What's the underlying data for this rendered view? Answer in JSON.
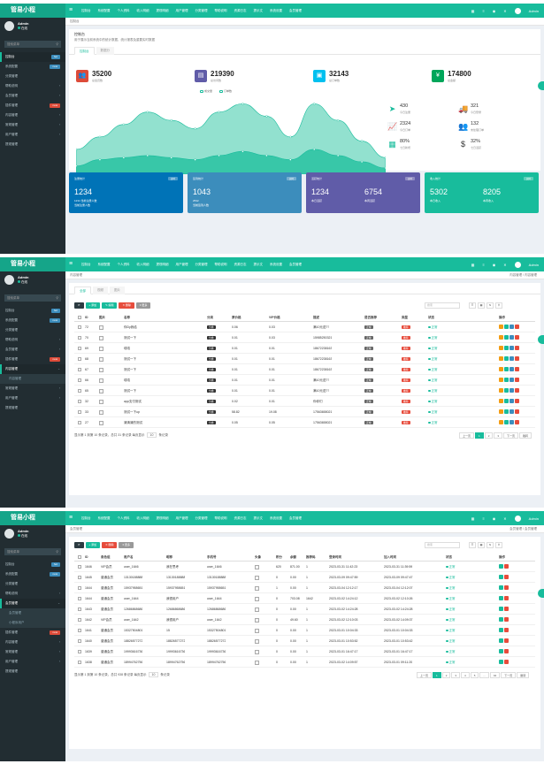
{
  "app": {
    "logo": "管易小程",
    "toggle_icon": "hamburger-icon",
    "top_nav": [
      "控制台",
      "系统配置",
      "个人资料",
      "收入明细",
      "提现明细",
      "用户管理",
      "分类管理",
      "帮助说明",
      "资源日志",
      "提示文",
      "系统设置",
      "会员管理"
    ],
    "top_right": [
      "▦",
      "≡",
      "◉",
      "✕",
      "Admin"
    ],
    "user": {
      "name": "Admin",
      "status": "在线"
    },
    "search_placeholder": "搜索菜单",
    "accent": "#18bc9c"
  },
  "panels": [
    {
      "breadcrumb": "控制台",
      "menu": [
        {
          "label": "控制台",
          "badge": "hot",
          "badge_color": "#3c8dbc",
          "active": true
        },
        {
          "label": "系统配置",
          "badge": "new",
          "badge_color": "#3c8dbc"
        },
        {
          "label": "分类管理"
        },
        {
          "label": "帮助说明",
          "arrow": "‹"
        },
        {
          "label": "会员管理",
          "arrow": "‹"
        },
        {
          "label": "插件管理",
          "badge": "new",
          "badge_color": "#dd4b39"
        },
        {
          "label": "内容管理",
          "arrow": "‹"
        },
        {
          "label": "常规管理",
          "arrow": "‹"
        },
        {
          "label": "用户管理",
          "arrow": "‹"
        },
        {
          "label": "提现管理"
        }
      ],
      "dash_title": "控制台",
      "dash_sub": "用于展示当前系统中的统计数据、统计报表及重要实时数据",
      "tabs": [
        "控制台",
        "数据分"
      ],
      "stats": [
        {
          "value": "35200",
          "label": "总会员数",
          "color": "#dd4b39",
          "icon": "users-icon",
          "glyph": "👥"
        },
        {
          "value": "219390",
          "label": "总访问数",
          "color": "#605ca8",
          "icon": "book-icon",
          "glyph": "▤"
        },
        {
          "value": "32143",
          "label": "总订单数",
          "color": "#00c0ef",
          "icon": "shopping-bag-icon",
          "glyph": "▣"
        },
        {
          "value": "174800",
          "label": "总金额",
          "color": "#00a65a",
          "icon": "yen-icon",
          "glyph": "¥"
        }
      ],
      "legend": [
        "成交量",
        "订单数"
      ],
      "chart_data": {
        "type": "area",
        "x": [
          "5/20",
          "6/20",
          "7/20",
          "8/20",
          "9/20",
          "10/20",
          "11/20",
          "12/20",
          "1/20",
          "2/20",
          "3/20",
          "4/20",
          "5/20",
          "6/20"
        ],
        "series": [
          {
            "name": "成交量",
            "values": [
              60,
              90,
              120,
              150,
              130,
              110,
              150,
              170,
              140,
              90,
              170,
              130,
              80,
              40
            ]
          },
          {
            "name": "订单数",
            "values": [
              20,
              35,
              40,
              45,
              40,
              35,
              45,
              55,
              45,
              35,
              60,
              45,
              30,
              15
            ]
          }
        ],
        "ylim": [
          0,
          190
        ]
      },
      "mini_stats": [
        {
          "value": "430",
          "label": "今日注册",
          "icon": "plane-icon",
          "glyph": "➤"
        },
        {
          "value": "321",
          "label": "今日登录",
          "icon": "truck-icon",
          "glyph": "🚚"
        },
        {
          "value": "2324",
          "label": "今日订单",
          "icon": "chart-icon",
          "glyph": "📈"
        },
        {
          "value": "132",
          "label": "未处理订单",
          "icon": "users-icon",
          "glyph": "👥"
        },
        {
          "value": "80%",
          "label": "七日新增",
          "icon": "calendar-icon",
          "glyph": "▦"
        },
        {
          "value": "32%",
          "label": "七日活跃",
          "icon": "dollar-icon",
          "glyph": "$"
        }
      ],
      "cards": [
        {
          "title": "注册统计",
          "tag": "实时",
          "color": "#0073b7",
          "v1": "1234",
          "l1": "1234 当前注册人数",
          "l2": "当前注册人数",
          "v2": ""
        },
        {
          "title": "签到统计",
          "tag": "实时",
          "color": "#3c8dbc",
          "v1": "1043",
          "l1": "2532",
          "l2": "当前签到人数",
          "v2": ""
        },
        {
          "title": "活跃统计",
          "tag": "实时",
          "color": "#605ca8",
          "v1": "1234",
          "l1": "本日活跃",
          "v2": "6754",
          "l2": "本周活跃"
        },
        {
          "title": "收入统计",
          "tag": "实时",
          "color": "#18bc9c",
          "v1": "5302",
          "l1": "本日收入",
          "v2": "8205",
          "l2": "本周收入"
        }
      ]
    },
    {
      "breadcrumb": "内容管理",
      "crumb_right": "内容管理 / 内容管理",
      "menu": [
        {
          "label": "控制台",
          "badge": "hot",
          "badge_color": "#3c8dbc"
        },
        {
          "label": "系统配置",
          "badge": "new",
          "badge_color": "#3c8dbc"
        },
        {
          "label": "分类管理"
        },
        {
          "label": "帮助说明",
          "arrow": "‹"
        },
        {
          "label": "会员管理",
          "arrow": "‹"
        },
        {
          "label": "插件管理",
          "badge": "new",
          "badge_color": "#dd4b39"
        },
        {
          "label": "内容管理",
          "arrow": "⌄",
          "active": true
        },
        {
          "label": "内容管理",
          "sub": true
        },
        {
          "label": "常规管理",
          "arrow": "‹"
        },
        {
          "label": "用户管理",
          "arrow": "‹"
        },
        {
          "label": "提现管理"
        }
      ],
      "tabs": [
        "全部",
        "视频",
        "图片"
      ],
      "toolbar": [
        {
          "label": "⟳",
          "color": "#2c3b41"
        },
        {
          "label": "+ 添加",
          "color": "#18bc9c"
        },
        {
          "label": "✎ 编辑",
          "color": "#18bc9c"
        },
        {
          "label": "✕ 删除",
          "color": "#e74c3c"
        },
        {
          "label": "≡ 更多",
          "color": "#999"
        }
      ],
      "search_placeholder": "搜索",
      "columns": [
        "ID",
        "图片",
        "名称",
        "分类",
        "原价格",
        "VIP价格",
        "描述",
        "是否推荐",
        "类型",
        "状态",
        "操作"
      ],
      "rows": [
        [
          "72",
          "",
          "你Dy我给",
          "分类",
          "0.06",
          "0.03",
          "满10元送7?",
          "正常",
          "推荐",
          "正常"
        ],
        [
          "70",
          "",
          "测试一下",
          "分类",
          "0.01",
          "0.03",
          "15985250321",
          "正常",
          "推荐",
          "正常"
        ],
        [
          "69",
          "",
          "嘻嘻",
          "分类",
          "0.01",
          "0.01",
          "18672238163",
          "正常",
          "推荐",
          "正常"
        ],
        [
          "68",
          "",
          "测试一下",
          "分类",
          "0.01",
          "0.01",
          "18672238163",
          "正常",
          "推荐",
          "正常"
        ],
        [
          "67",
          "",
          "测试一下",
          "分类",
          "0.01",
          "0.01",
          "18672238163",
          "正常",
          "推荐",
          "正常"
        ],
        [
          "66",
          "",
          "嘻嘻",
          "分类",
          "0.01",
          "0.01",
          "满10元送7?",
          "正常",
          "推荐",
          "正常"
        ],
        [
          "65",
          "",
          "测试一下",
          "分类",
          "0.01",
          "0.01",
          "满10元送7?",
          "正常",
          "推荐",
          "正常"
        ],
        [
          "32",
          "",
          "app支付测试",
          "分类",
          "0.02",
          "0.01",
          "你你们",
          "正常",
          "推荐",
          "正常"
        ],
        [
          "33",
          "",
          "测试一下up",
          "分类",
          "58.82",
          "19.08",
          "17563658021",
          "正常",
          "推荐",
          "正常"
        ],
        [
          "27",
          "",
          "清清清的测试",
          "分类",
          "0.05",
          "0.05",
          "17563658021",
          "正常",
          "推荐",
          "正常"
        ]
      ],
      "footer": "显示第 1 到第 10 条记录，总共 31 条记录 每页显示",
      "per_page": "10",
      "footer_tail": "条记录",
      "pages": [
        "上一页",
        "1",
        "2",
        "3",
        "下一页",
        "跳转"
      ]
    },
    {
      "breadcrumb": "会员管理",
      "crumb_right": "会员管理 / 会员管理",
      "menu": [
        {
          "label": "控制台",
          "badge": "hot",
          "badge_color": "#3c8dbc"
        },
        {
          "label": "系统配置",
          "badge": "new",
          "badge_color": "#3c8dbc"
        },
        {
          "label": "分类管理"
        },
        {
          "label": "帮助说明",
          "arrow": "‹"
        },
        {
          "label": "会员管理",
          "arrow": "⌄",
          "active": true
        },
        {
          "label": "会员管理",
          "sub": true
        },
        {
          "label": "小程序用户",
          "sub": true
        },
        {
          "label": "插件管理",
          "badge": "new",
          "badge_color": "#dd4b39"
        },
        {
          "label": "内容管理",
          "arrow": "‹"
        },
        {
          "label": "常规管理",
          "arrow": "‹"
        },
        {
          "label": "用户管理",
          "arrow": "‹"
        },
        {
          "label": "提现管理"
        }
      ],
      "toolbar": [
        {
          "label": "⟳",
          "color": "#2c3b41"
        },
        {
          "label": "+ 添加",
          "color": "#18bc9c"
        },
        {
          "label": "✕ 删除",
          "color": "#e74c3c"
        },
        {
          "label": "≡ 更多",
          "color": "#999"
        }
      ],
      "search_placeholder": "搜索",
      "columns": [
        "ID",
        "角色组",
        "用户名",
        "昵称",
        "手机号",
        "头像",
        "积分",
        "余额",
        "推荐码",
        "登录时间",
        "加入时间",
        "状态",
        "操作"
      ],
      "rows": [
        [
          "1646",
          "VIP会员",
          "user_1646",
          "我在思考",
          "user_1646",
          "",
          "620",
          "871.00",
          "1",
          "2023-03-31 11:42:23",
          "2023-03-31 11:39:59",
          "正常"
        ],
        [
          "1645",
          "普通会员",
          "13130188888",
          "13130188888",
          "13130188888",
          "",
          "0",
          "0.00",
          "1",
          "2023-03-09 09:47:59",
          "2023-03-09 09:47:47",
          "正常"
        ],
        [
          "1644",
          "普通会员",
          "15937958651",
          "15937958651",
          "15937958651",
          "",
          "1",
          "0.00",
          "1",
          "2023-03-04 12:12:17",
          "2023-03-04 12:12:07",
          "正常"
        ],
        [
          "1644",
          "普通会员",
          "user_1644",
          "我很用户",
          "user_1644",
          "",
          "0",
          "703.08",
          "1642",
          "2023-03-02 14:24:12",
          "2023-03-02 12:10:26",
          "正常"
        ],
        [
          "1643",
          "普通会员",
          "12686868686",
          "12686868686",
          "12686868686",
          "",
          "0",
          "0.00",
          "1",
          "2023-03-02 14:24:28",
          "2023-03-02 14:24:28",
          "正常"
        ],
        [
          "1642",
          "VIP会员",
          "user_1642",
          "我很用户",
          "user_1642",
          "",
          "0",
          "49.60",
          "1",
          "2023-03-02 12:10:03",
          "2023-03-02 14:09:37",
          "正常"
        ],
        [
          "1641",
          "普通会员",
          "15327504801",
          "15",
          "15327504801",
          "",
          "0",
          "0.00",
          "1",
          "2023-03-01 10:04:33",
          "2023-03-01 10:04:33",
          "正常"
        ],
        [
          "1640",
          "普通会员",
          "18826577272",
          "18826577272",
          "18826577272",
          "",
          "0",
          "0.00",
          "1",
          "2023-03-01 10:53:52",
          "2023-03-01 10:53:42",
          "正常"
        ],
        [
          "1639",
          "普通会员",
          "19993616736",
          "19993616736",
          "19993616736",
          "",
          "0",
          "0.00",
          "1",
          "2023-03-01 16:47:17",
          "2023-03-01 16:47:17",
          "正常"
        ],
        [
          "1638",
          "普通会员",
          "18994762756",
          "18994762756",
          "18994762756",
          "",
          "0",
          "0.00",
          "1",
          "2023-03-02 14:09:57",
          "2023-03-01 09:11:20",
          "正常"
        ]
      ],
      "footer": "显示第 1 到第 10 条记录，总共 938 条记录 每页显示",
      "per_page": "10",
      "footer_tail": "条记录",
      "pages": [
        "上一页",
        "1",
        "2",
        "3",
        "4",
        "5",
        "...",
        "94",
        "下一页",
        "跳转"
      ]
    }
  ]
}
